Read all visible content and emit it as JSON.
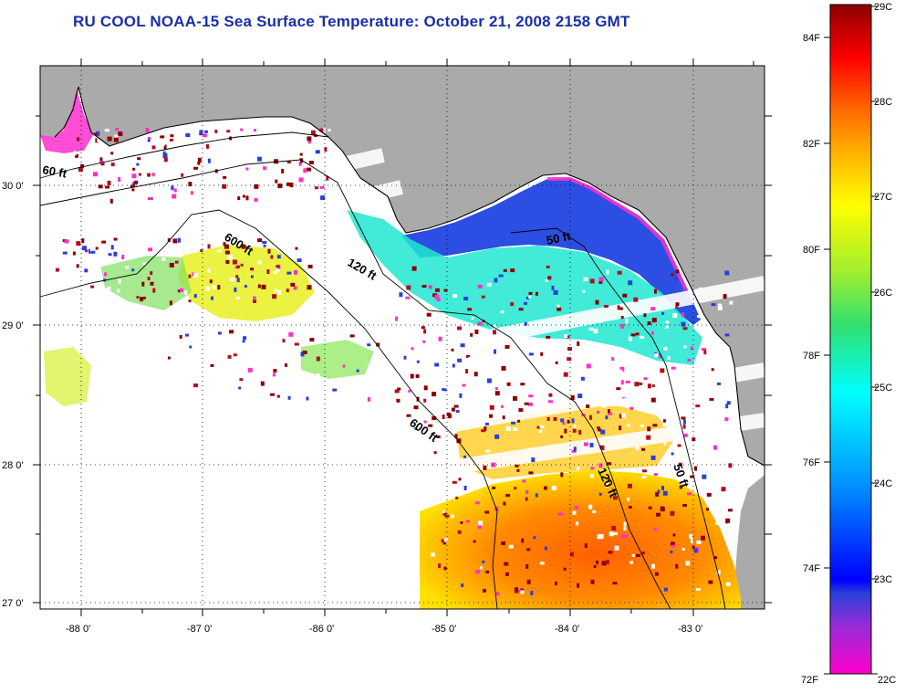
{
  "title": "RU COOL  NOAA-15  Sea Surface Temperature:  October 21, 2008 2158 GMT",
  "map": {
    "lat_labels": [
      "30 0'",
      "29 0'",
      "28 0'",
      "27 0'"
    ],
    "lon_labels": [
      "-88 0'",
      "-87 0'",
      "-86 0'",
      "-85 0'",
      "-84 0'",
      "-83 0'"
    ],
    "depth_contour_labels": [
      "60 ft",
      "600 ft",
      "120 ft",
      "50 ft",
      "600 ft",
      "120 ft",
      "50 ft"
    ],
    "colors": {
      "land": "#aaaaaa",
      "cloud": "#ffffff",
      "coast": "#000000"
    }
  },
  "colorbar": {
    "celsius_labels": [
      "29C",
      "28C",
      "27C",
      "26C",
      "25C",
      "24C",
      "23C",
      "22C"
    ],
    "fahrenheit_labels": [
      "84F",
      "82F",
      "80F",
      "78F",
      "76F",
      "74F",
      "72F"
    ],
    "stops": [
      "#ff00cc",
      "#9a2bd8",
      "#2b40d8",
      "#0000ff",
      "#0090ff",
      "#00ffff",
      "#30e070",
      "#a0ee30",
      "#ffff00",
      "#ffb000",
      "#ff6000",
      "#ff0000",
      "#8b0000"
    ]
  }
}
